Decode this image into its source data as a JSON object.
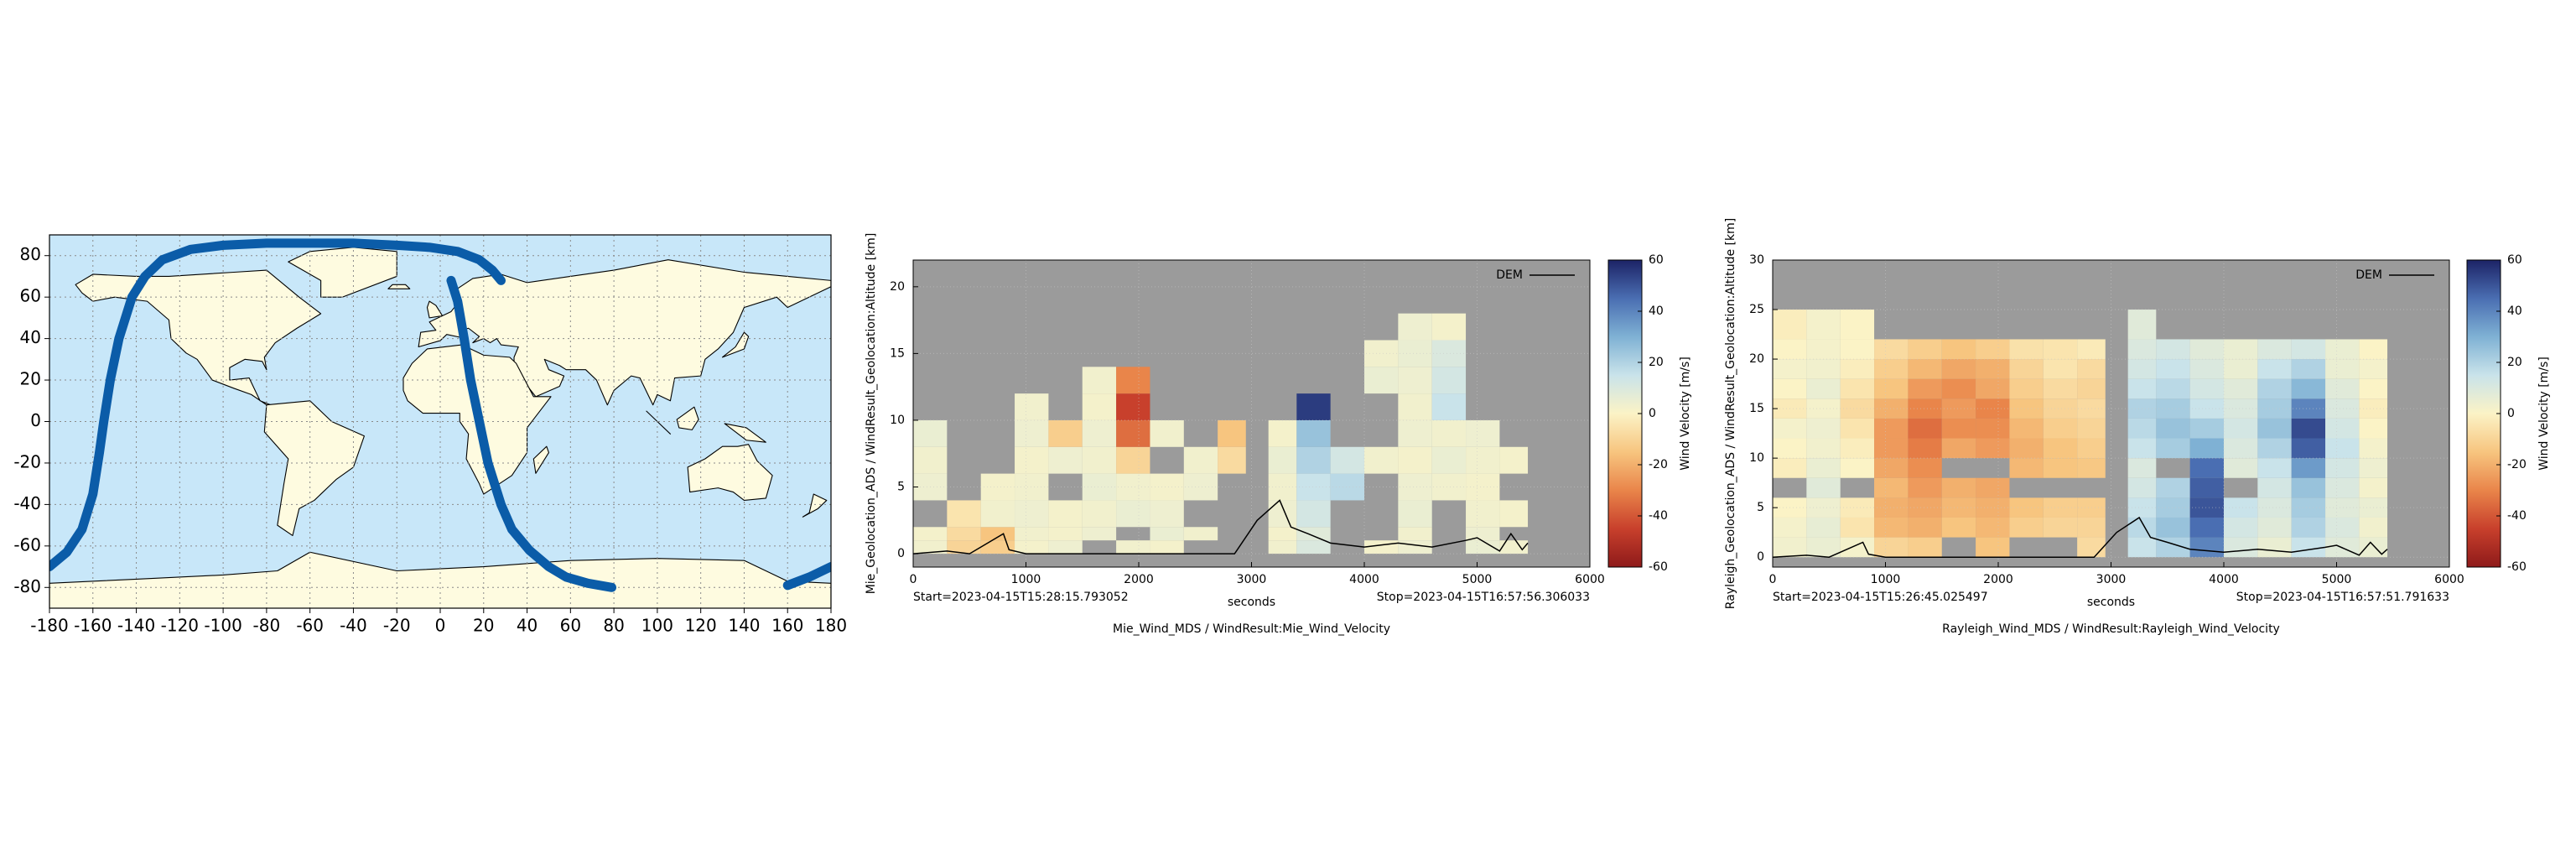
{
  "chart_data": [
    {
      "type": "map",
      "x": [
        -180,
        -172,
        -165,
        -160,
        -157,
        -155,
        -152,
        -148,
        -142,
        -136,
        -128,
        -115,
        -100,
        -80,
        -60,
        -40,
        -20,
        -5,
        8,
        18,
        24,
        28,
        null,
        5,
        8,
        11,
        14,
        18,
        22,
        28,
        33,
        41,
        50,
        58,
        68,
        79,
        null,
        160,
        170,
        180
      ],
      "values": [
        -70,
        -63,
        -52,
        -35,
        -15,
        0,
        20,
        40,
        60,
        70,
        78,
        83,
        85,
        86,
        86,
        86,
        85,
        84,
        82,
        78,
        73,
        68,
        null,
        68,
        58,
        40,
        20,
        0,
        -20,
        -40,
        -52,
        -62,
        -70,
        -75,
        -78,
        -80,
        null,
        -79,
        -75,
        -70
      ],
      "color": "#0b5ca8",
      "ocean_color": "#c8e7f9",
      "land_color": "#fefbe0",
      "xlim": [
        -180,
        180
      ],
      "ylim": [
        -90,
        90
      ],
      "xticks": [
        -180,
        -160,
        -140,
        -120,
        -100,
        -80,
        -60,
        -40,
        -20,
        0,
        20,
        40,
        60,
        80,
        100,
        120,
        140,
        160,
        180
      ],
      "yticks": [
        -80,
        -60,
        -40,
        -20,
        0,
        20,
        40,
        60,
        80
      ],
      "grid": true
    },
    {
      "type": "curtain",
      "title": "Mie_Wind_MDS / WindResult:Mie_Wind_Velocity",
      "xlabel": "seconds",
      "ylabel": "Mie_Geolocation_ADS / WindResult_Geolocation:Altitude [km]",
      "start_label": "Start=2023-04-15T15:28:15.793052",
      "stop_label": "Stop=2023-04-15T16:57:56.306033",
      "xlim": [
        0,
        6000
      ],
      "xticks": [
        0,
        1000,
        2000,
        3000,
        4000,
        5000,
        6000
      ],
      "ylim": [
        -1,
        22
      ],
      "yticks": [
        0,
        5,
        10,
        15,
        20
      ],
      "grid": true,
      "background": "#9b9b9b",
      "x_edges": [
        0,
        300,
        600,
        900,
        1200,
        1500,
        1800,
        2100,
        2400,
        2700,
        2950,
        3150,
        3400,
        3700,
        4000,
        4300,
        4600,
        4900,
        5200,
        5450
      ],
      "y_edges": [
        0,
        1,
        2,
        4,
        6,
        8,
        10,
        12,
        14,
        16,
        18
      ],
      "values": [
        [
          3,
          -10,
          -12,
          2,
          4,
          null,
          3,
          2,
          null,
          null,
          null,
          3,
          10,
          null,
          2,
          4,
          null,
          5,
          3
        ],
        [
          2,
          -8,
          -15,
          3,
          2,
          4,
          null,
          5,
          3,
          null,
          null,
          2,
          8,
          null,
          null,
          3,
          null,
          4,
          null
        ],
        [
          null,
          -5,
          3,
          4,
          2,
          3,
          5,
          4,
          null,
          null,
          null,
          4,
          12,
          null,
          null,
          5,
          null,
          3,
          2
        ],
        [
          4,
          null,
          2,
          3,
          null,
          5,
          3,
          2,
          4,
          null,
          null,
          3,
          15,
          18,
          null,
          4,
          3,
          2,
          null
        ],
        [
          3,
          null,
          null,
          2,
          4,
          3,
          -10,
          null,
          3,
          -8,
          null,
          5,
          20,
          12,
          3,
          2,
          5,
          3,
          2
        ],
        [
          5,
          null,
          null,
          4,
          -12,
          4,
          -35,
          3,
          null,
          -15,
          null,
          2,
          25,
          null,
          null,
          4,
          3,
          4,
          null
        ],
        [
          null,
          null,
          null,
          3,
          null,
          2,
          -45,
          null,
          null,
          null,
          null,
          null,
          55,
          null,
          null,
          3,
          15,
          null,
          null
        ],
        [
          null,
          null,
          null,
          null,
          null,
          3,
          -30,
          null,
          null,
          null,
          null,
          null,
          null,
          null,
          5,
          4,
          12,
          null,
          null
        ],
        [
          null,
          null,
          null,
          null,
          null,
          null,
          null,
          null,
          null,
          null,
          null,
          null,
          null,
          null,
          3,
          5,
          10,
          null,
          null
        ],
        [
          null,
          null,
          null,
          null,
          null,
          null,
          null,
          null,
          null,
          null,
          null,
          null,
          null,
          null,
          null,
          4,
          2,
          null,
          null
        ]
      ],
      "zlim": [
        -60,
        60
      ],
      "zticks": [
        -60,
        -40,
        -20,
        0,
        20,
        40,
        60
      ],
      "colorbar_label": "Wind Velocity [m/s]",
      "colormap": [
        "#8e1a1a",
        "#c8402c",
        "#e9854a",
        "#f7c57f",
        "#fbf3c6",
        "#c9e3ea",
        "#7fb1d4",
        "#4a6eb2",
        "#1c2366"
      ],
      "series": [
        {
          "name": "DEM",
          "color": "#000000",
          "x": [
            0,
            300,
            500,
            800,
            850,
            1000,
            2850,
            3050,
            3250,
            3350,
            3500,
            3700,
            4000,
            4300,
            4600,
            4900,
            5000,
            5200,
            5300,
            5400,
            5450
          ],
          "values": [
            0,
            0.2,
            0,
            1.5,
            0.3,
            0,
            0,
            2.5,
            4,
            2,
            1.5,
            0.8,
            0.5,
            0.8,
            0.5,
            1,
            1.2,
            0.2,
            1.5,
            0.3,
            0.8
          ]
        }
      ],
      "legend": "upper right"
    },
    {
      "type": "curtain",
      "title": "Rayleigh_Wind_MDS / WindResult:Rayleigh_Wind_Velocity",
      "xlabel": "seconds",
      "ylabel": "Rayleigh_Geolocation_ADS / WindResult_Geolocation:Altitude [km]",
      "start_label": "Start=2023-04-15T15:26:45.025497",
      "stop_label": "Stop=2023-04-15T16:57:51.791633",
      "xlim": [
        0,
        6000
      ],
      "xticks": [
        0,
        1000,
        2000,
        3000,
        4000,
        5000,
        6000
      ],
      "ylim": [
        -1,
        30
      ],
      "yticks": [
        0,
        5,
        10,
        15,
        20,
        25,
        30
      ],
      "grid": true,
      "background": "#9b9b9b",
      "x_edges": [
        0,
        300,
        600,
        900,
        1200,
        1500,
        1800,
        2100,
        2400,
        2700,
        2950,
        3150,
        3400,
        3700,
        4000,
        4300,
        4600,
        4900,
        5200,
        5450
      ],
      "y_edges": [
        0,
        2,
        4,
        6,
        8,
        10,
        12,
        14,
        16,
        18,
        20,
        22,
        25
      ],
      "values": [
        [
          3,
          5,
          2,
          -10,
          -12,
          null,
          -15,
          null,
          null,
          -8,
          null,
          15,
          20,
          40,
          10,
          5,
          15,
          8,
          5
        ],
        [
          2,
          6,
          -5,
          -18,
          -20,
          -15,
          -18,
          -12,
          -10,
          -10,
          null,
          18,
          25,
          45,
          12,
          8,
          20,
          10,
          3
        ],
        [
          0,
          4,
          -3,
          -20,
          -22,
          -18,
          -20,
          -15,
          -12,
          -12,
          null,
          15,
          22,
          50,
          15,
          10,
          22,
          8,
          5
        ],
        [
          null,
          8,
          null,
          -18,
          -25,
          -20,
          -22,
          null,
          null,
          null,
          null,
          12,
          20,
          48,
          null,
          12,
          25,
          10,
          2
        ],
        [
          -2,
          5,
          0,
          -22,
          -28,
          null,
          null,
          -18,
          -15,
          -14,
          null,
          10,
          null,
          45,
          8,
          15,
          35,
          12,
          4
        ],
        [
          0,
          3,
          -2,
          -25,
          -32,
          -22,
          -25,
          -20,
          -15,
          -12,
          null,
          15,
          22,
          30,
          10,
          20,
          48,
          15,
          2
        ],
        [
          2,
          4,
          -5,
          -25,
          -35,
          -28,
          -28,
          -18,
          -12,
          -10,
          null,
          18,
          25,
          22,
          12,
          25,
          52,
          12,
          0
        ],
        [
          -3,
          2,
          -8,
          -20,
          -30,
          -25,
          -30,
          -15,
          -10,
          -8,
          null,
          20,
          22,
          15,
          10,
          22,
          40,
          10,
          -2
        ],
        [
          0,
          5,
          -5,
          -15,
          -25,
          -28,
          -22,
          -12,
          -8,
          -10,
          null,
          15,
          18,
          12,
          8,
          20,
          28,
          8,
          0
        ],
        [
          2,
          3,
          -2,
          -12,
          -18,
          -22,
          -20,
          -10,
          -5,
          -8,
          null,
          12,
          15,
          10,
          5,
          15,
          20,
          5,
          2
        ],
        [
          0,
          2,
          0,
          -8,
          -12,
          -15,
          -12,
          -6,
          -5,
          -3,
          null,
          10,
          12,
          8,
          5,
          10,
          12,
          5,
          0
        ],
        [
          -2,
          2,
          0,
          null,
          null,
          null,
          null,
          null,
          null,
          null,
          null,
          8,
          null,
          null,
          null,
          null,
          null,
          null,
          null
        ]
      ],
      "zlim": [
        -60,
        60
      ],
      "zticks": [
        -60,
        -40,
        -20,
        0,
        20,
        40,
        60
      ],
      "colorbar_label": "Wind Velocity [m/s]",
      "colormap": [
        "#8e1a1a",
        "#c8402c",
        "#e9854a",
        "#f7c57f",
        "#fbf3c6",
        "#c9e3ea",
        "#7fb1d4",
        "#4a6eb2",
        "#1c2366"
      ],
      "series": [
        {
          "name": "DEM",
          "color": "#000000",
          "x": [
            0,
            300,
            500,
            800,
            850,
            1000,
            2850,
            3050,
            3250,
            3350,
            3500,
            3700,
            4000,
            4300,
            4600,
            4900,
            5000,
            5200,
            5300,
            5400,
            5450
          ],
          "values": [
            0,
            0.2,
            0,
            1.5,
            0.3,
            0,
            0,
            2.5,
            4,
            2,
            1.5,
            0.8,
            0.5,
            0.8,
            0.5,
            1,
            1.2,
            0.2,
            1.5,
            0.3,
            0.8
          ]
        }
      ],
      "legend": "upper right"
    }
  ]
}
